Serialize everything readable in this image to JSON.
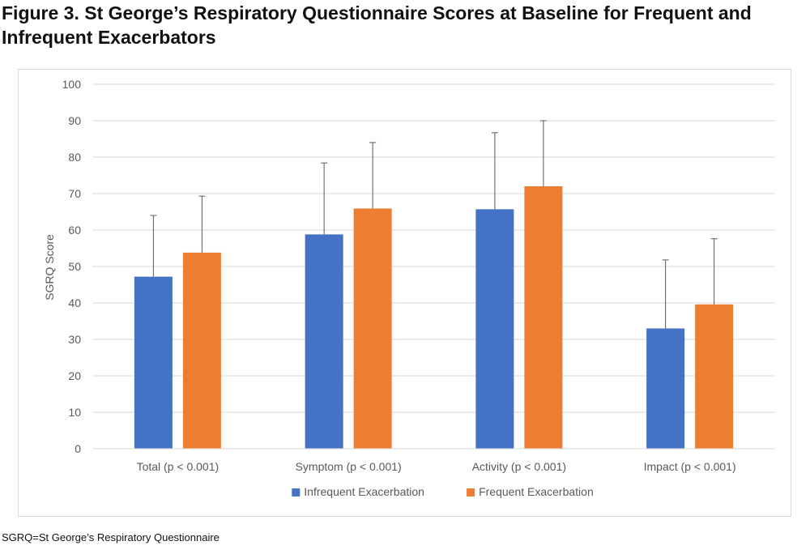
{
  "figure": {
    "title": "Figure 3. St George’s Respiratory Questionnaire Scores at Baseline for Frequent and Infrequent Exacerbators",
    "footnote": "SGRQ=St George’s Respiratory Questionnaire"
  },
  "chart_data": {
    "type": "bar",
    "title": "",
    "xlabel": "",
    "ylabel": "SGRQ Score",
    "ylim": [
      0,
      100
    ],
    "yticks": [
      0,
      10,
      20,
      30,
      40,
      50,
      60,
      70,
      80,
      90,
      100
    ],
    "grid": true,
    "legend_position": "bottom",
    "categories": [
      "Total (p < 0.001)",
      "Symptom (p < 0.001)",
      "Activity (p < 0.001)",
      "Impact (p < 0.001)"
    ],
    "series": [
      {
        "name": "Infrequent Exacerbation",
        "color": "#4472C4",
        "values": [
          47.2,
          58.8,
          65.7,
          33
        ],
        "error_upper": [
          64,
          78.4,
          86.7,
          51.8
        ]
      },
      {
        "name": "Frequent Exacerbation",
        "color": "#ED7D31",
        "values": [
          53.8,
          65.9,
          72,
          39.6
        ],
        "error_upper": [
          69.3,
          84,
          90,
          57.6
        ]
      }
    ]
  }
}
